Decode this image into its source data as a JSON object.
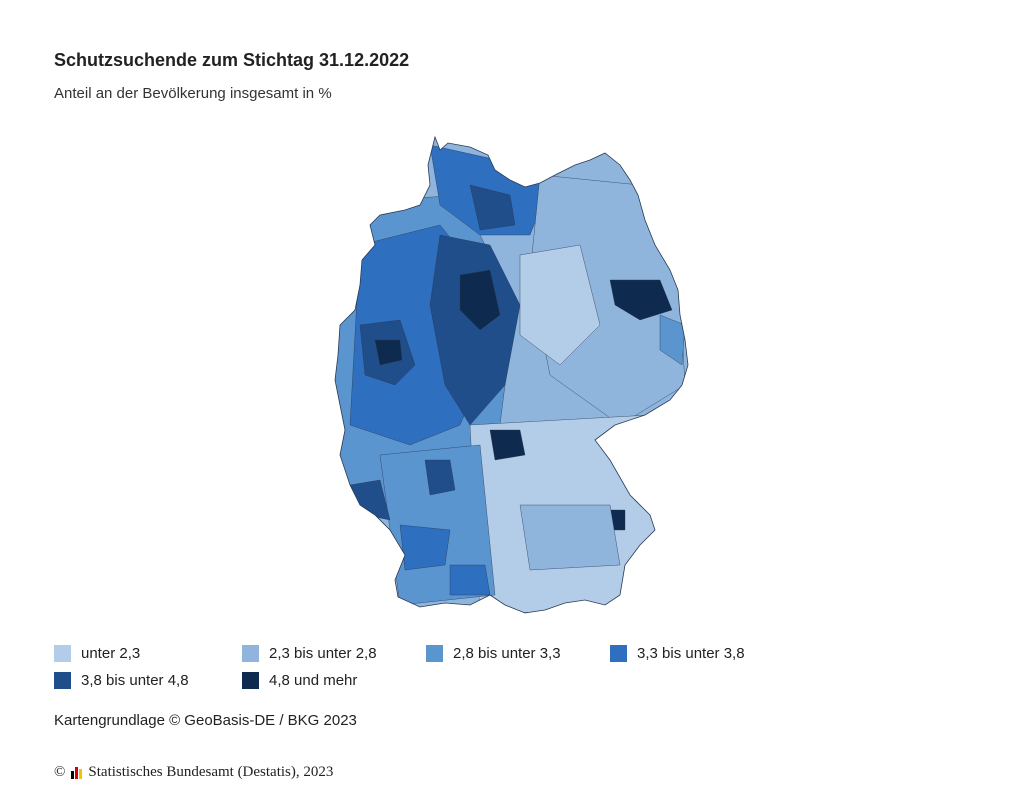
{
  "title": "Schutzsuchende zum Stichtag 31.12.2022",
  "subtitle": "Anteil an der Bevölkerung insgesamt in %",
  "legend": [
    {
      "label": "unter 2,3",
      "color": "#b3cde8"
    },
    {
      "label": "2,3 bis unter 2,8",
      "color": "#8fb5dc"
    },
    {
      "label": "2,8 bis unter 3,3",
      "color": "#5b95d0"
    },
    {
      "label": "3,3 bis unter 3,8",
      "color": "#2f6fbf"
    },
    {
      "label": "3,8 bis unter 4,8",
      "color": "#1f4e8a"
    },
    {
      "label": "4,8 und mehr",
      "color": "#0e2a4e"
    }
  ],
  "source": "Kartengrundlage © GeoBasis-DE / BKG 2023",
  "footer": {
    "copyright_symbol": "©",
    "text": "Statistisches Bundesamt (Destatis), 2023",
    "logo_colors": [
      "#000000",
      "#d40000",
      "#f5c400"
    ]
  },
  "map": {
    "region": "Germany",
    "colors_ref": "legend"
  }
}
